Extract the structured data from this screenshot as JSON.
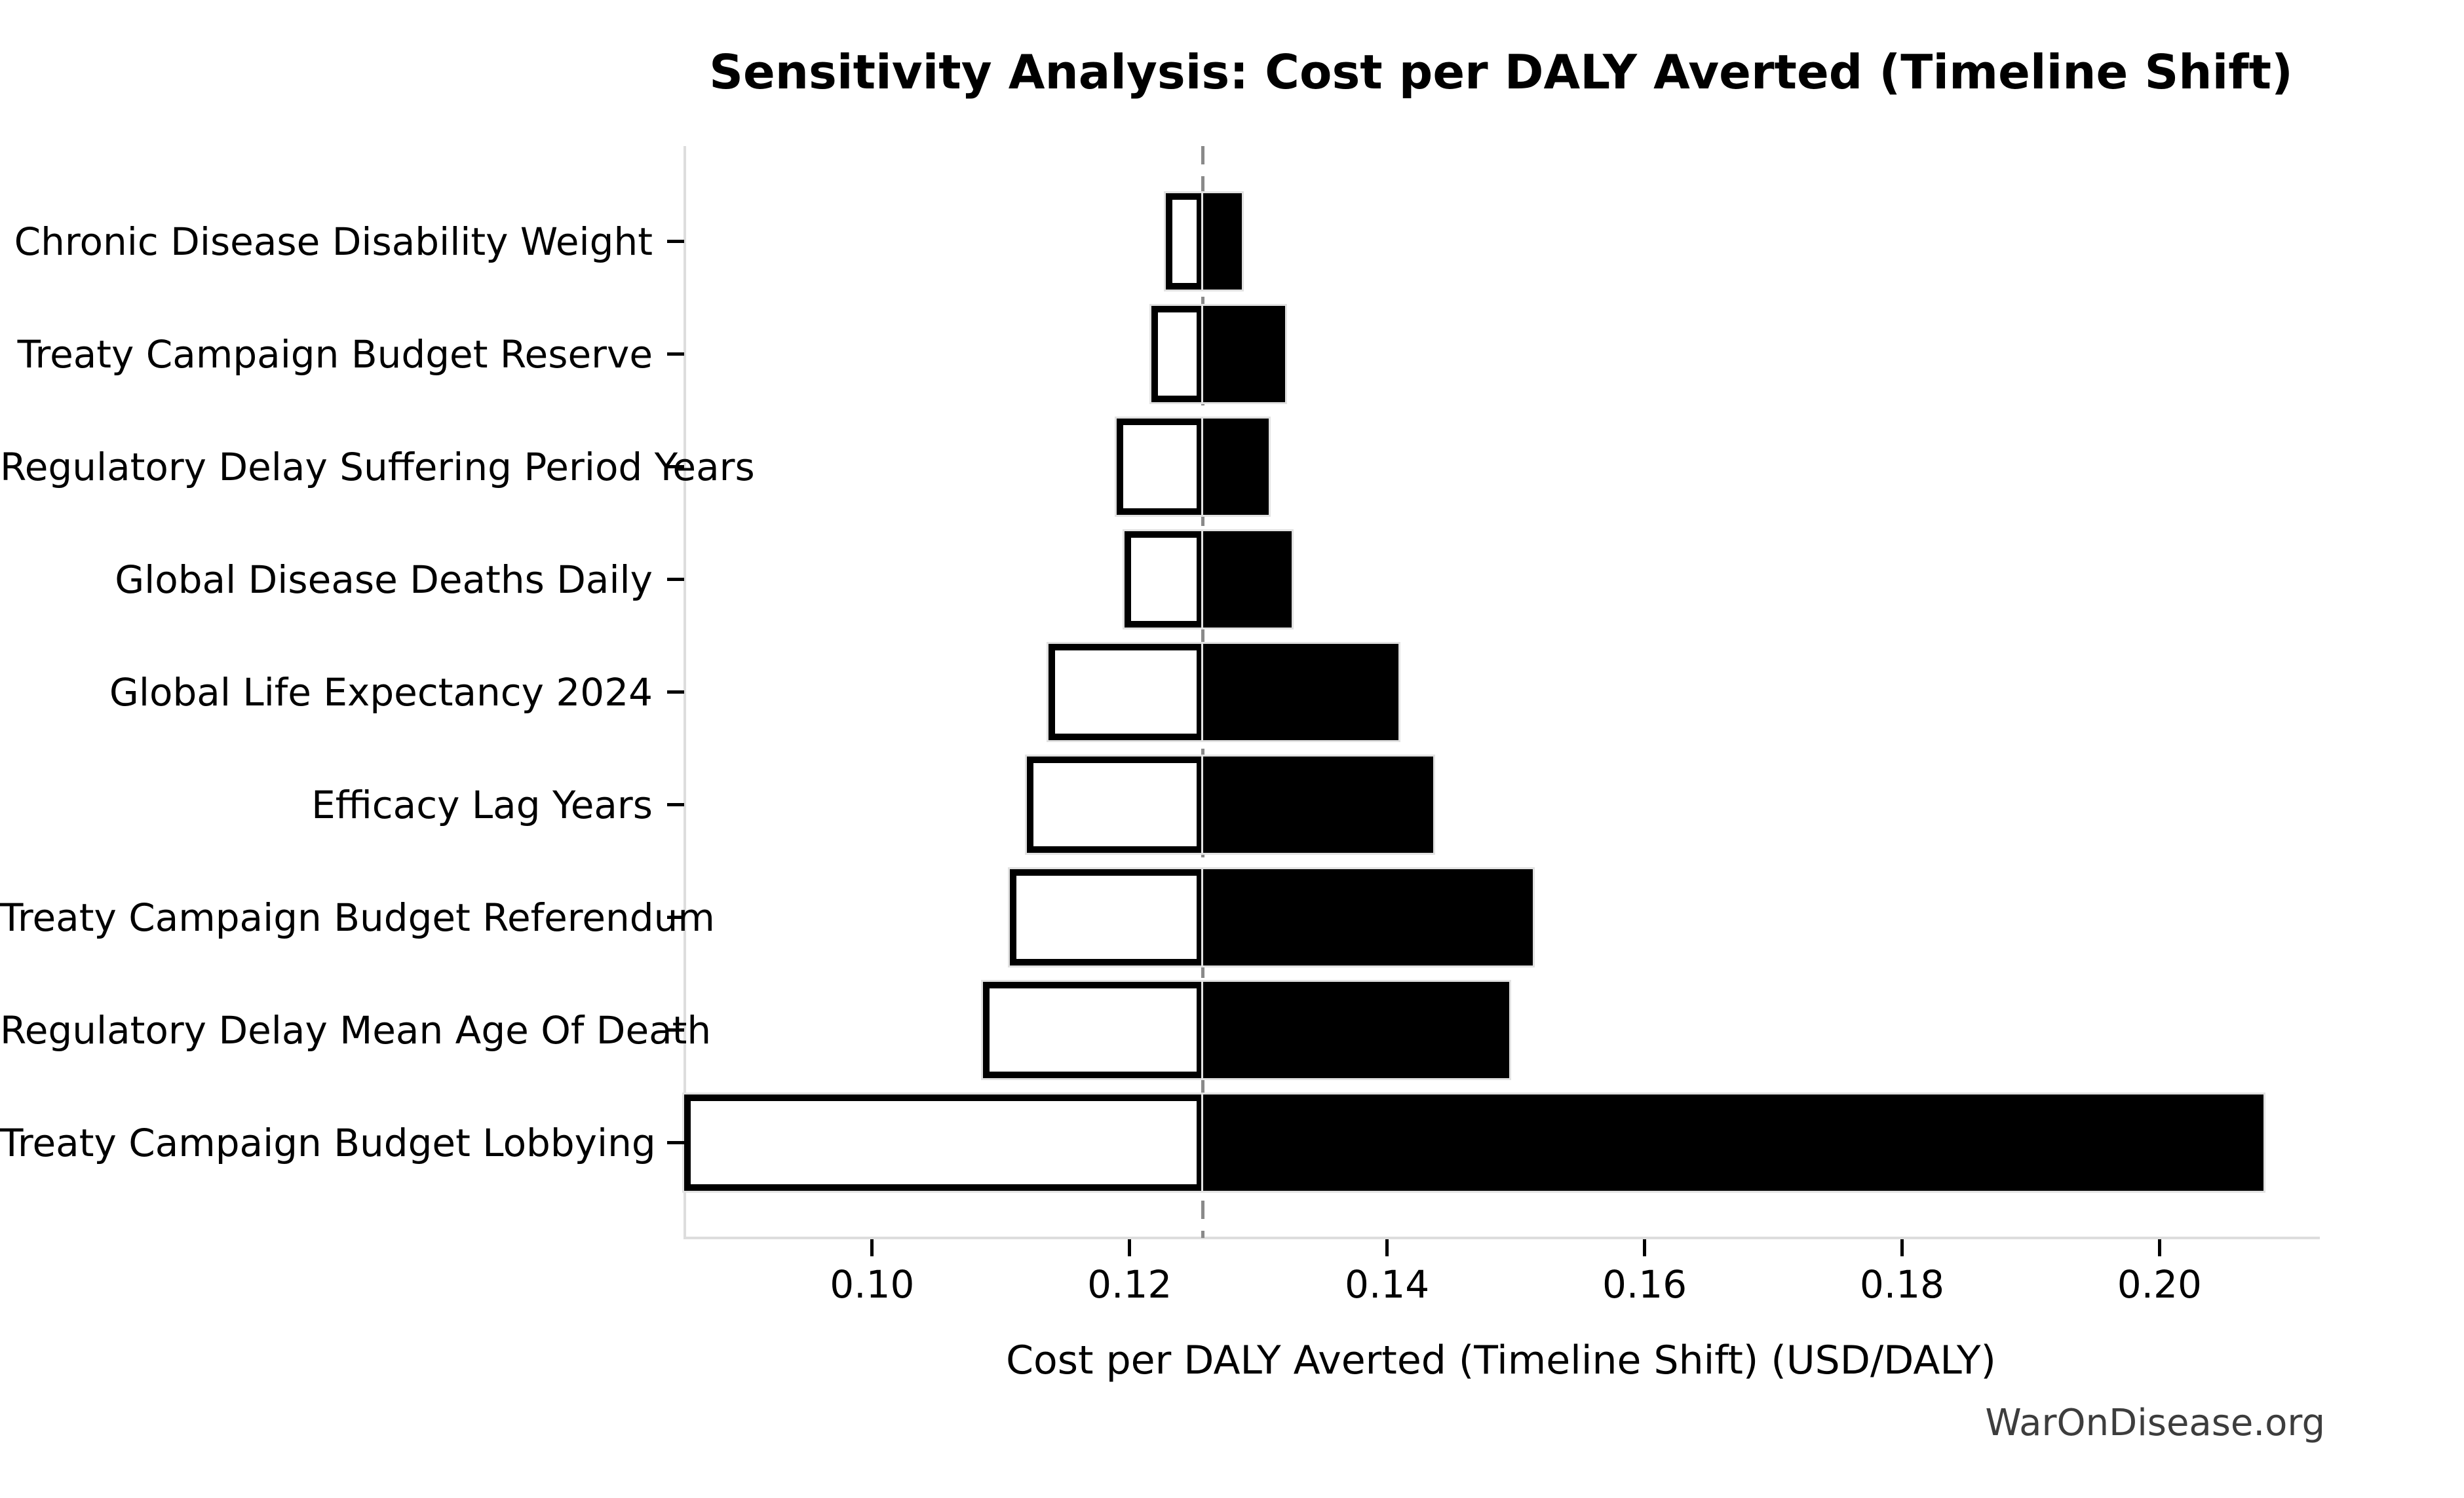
{
  "page": {
    "background": "#ffffff"
  },
  "chart_data": {
    "type": "bar",
    "variant": "tornado-sensitivity",
    "title": "Sensitivity Analysis: Cost per DALY Averted (Timeline Shift)",
    "xlabel": "Cost per DALY Averted (Timeline Shift) (USD/DALY)",
    "ylabel": "",
    "legend": "none",
    "grid": false,
    "baseline": 0.1257,
    "xlim": [
      0.0854,
      0.2123
    ],
    "xticks": [
      0.1,
      0.12,
      0.14,
      0.16,
      0.18,
      0.2
    ],
    "xtick_labels": [
      "0.10",
      "0.12",
      "0.14",
      "0.16",
      "0.18",
      "0.20"
    ],
    "categories": [
      "Chronic Disease Disability Weight",
      "Treaty Campaign Budget Reserve",
      "Regulatory Delay Suffering Period Years",
      "Global Disease Deaths Daily",
      "Global Life Expectancy 2024",
      "Efficacy Lag Years",
      "Treaty Campaign Budget Referendum",
      "Regulatory Delay Mean Age Of Death",
      "Treaty Campaign Budget Lobbying"
    ],
    "series": [
      {
        "name": "low",
        "values": [
          0.1228,
          0.1217,
          0.119,
          0.1196,
          0.1137,
          0.112,
          0.1107,
          0.1086,
          0.0854
        ]
      },
      {
        "name": "high",
        "values": [
          0.1287,
          0.1321,
          0.1308,
          0.1326,
          0.1409,
          0.1436,
          0.1513,
          0.1495,
          0.2081
        ]
      }
    ],
    "colors": {
      "low_fill": "#ffffff",
      "low_edge": "#000000",
      "high_fill": "#000000",
      "bar_halo": "#e2e2e2",
      "baseline_line": "#8a8a8a",
      "spine": "#dddddd",
      "tick": "#000000",
      "text": "#000000"
    }
  },
  "footer": {
    "watermark": "WarOnDisease.org",
    "color": "#3d3d3d"
  }
}
